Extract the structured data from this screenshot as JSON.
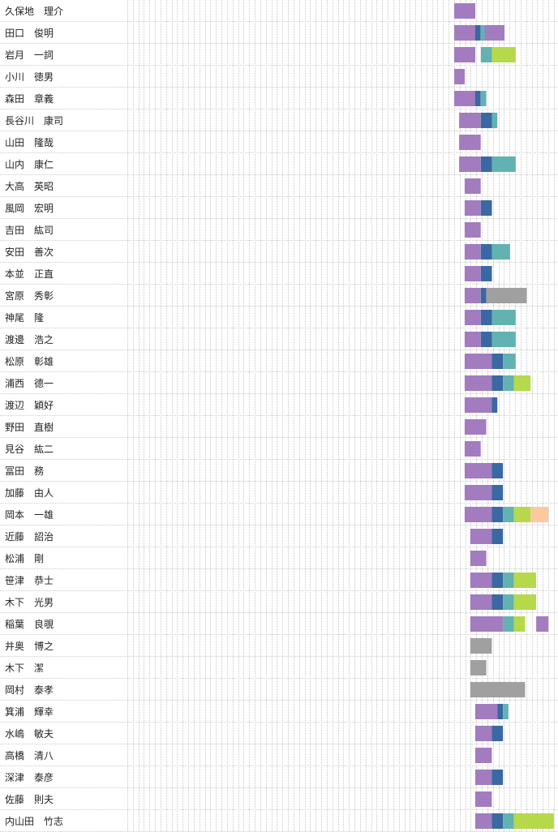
{
  "chart_data": {
    "type": "bar",
    "orientation": "horizontal-timeline",
    "grid": true,
    "column_count": 78,
    "colors": {
      "purple": "#a27cbf",
      "blue": "#3a68a2",
      "teal": "#62b2b1",
      "green": "#b5d94a",
      "peach": "#fbc99c",
      "gray": "#a0a0a0"
    },
    "rows": [
      {
        "name": "久保地　理介",
        "segments": [
          {
            "start": 59,
            "end": 62.8,
            "color": "purple"
          }
        ]
      },
      {
        "name": "田口　俊明",
        "segments": [
          {
            "start": 59,
            "end": 62.8,
            "color": "purple"
          },
          {
            "start": 62.8,
            "end": 63.8,
            "color": "blue"
          },
          {
            "start": 63.8,
            "end": 64.5,
            "color": "teal"
          },
          {
            "start": 64.5,
            "end": 68.1,
            "color": "purple"
          }
        ]
      },
      {
        "name": "岩月　一詞",
        "segments": [
          {
            "start": 59,
            "end": 62.8,
            "color": "purple"
          },
          {
            "start": 63.8,
            "end": 65.8,
            "color": "teal"
          },
          {
            "start": 65.8,
            "end": 70.1,
            "color": "green"
          }
        ]
      },
      {
        "name": "小川　徳男",
        "segments": [
          {
            "start": 59,
            "end": 60.9,
            "color": "purple"
          }
        ]
      },
      {
        "name": "森田　章義",
        "segments": [
          {
            "start": 59,
            "end": 62.8,
            "color": "purple"
          },
          {
            "start": 62.8,
            "end": 63.8,
            "color": "blue"
          },
          {
            "start": 63.8,
            "end": 64.8,
            "color": "teal"
          }
        ]
      },
      {
        "name": "長谷川　康司",
        "segments": [
          {
            "start": 59.9,
            "end": 63.8,
            "color": "purple"
          },
          {
            "start": 63.8,
            "end": 65.8,
            "color": "blue"
          },
          {
            "start": 65.8,
            "end": 66.8,
            "color": "teal"
          }
        ]
      },
      {
        "name": "山田　隆哉",
        "segments": [
          {
            "start": 59.9,
            "end": 63.8,
            "color": "purple"
          }
        ]
      },
      {
        "name": "山内　康仁",
        "segments": [
          {
            "start": 59.9,
            "end": 63.8,
            "color": "purple"
          },
          {
            "start": 63.8,
            "end": 65.8,
            "color": "blue"
          },
          {
            "start": 65.8,
            "end": 70.1,
            "color": "teal"
          }
        ]
      },
      {
        "name": "大高　英昭",
        "segments": [
          {
            "start": 60.9,
            "end": 63.8,
            "color": "purple"
          }
        ]
      },
      {
        "name": "風岡　宏明",
        "segments": [
          {
            "start": 60.9,
            "end": 63.8,
            "color": "purple"
          },
          {
            "start": 63.8,
            "end": 65.8,
            "color": "blue"
          }
        ]
      },
      {
        "name": "吉田　紘司",
        "segments": [
          {
            "start": 60.9,
            "end": 63.8,
            "color": "purple"
          }
        ]
      },
      {
        "name": "安田　善次",
        "segments": [
          {
            "start": 60.9,
            "end": 63.8,
            "color": "purple"
          },
          {
            "start": 63.8,
            "end": 65.8,
            "color": "blue"
          },
          {
            "start": 65.8,
            "end": 69.1,
            "color": "teal"
          }
        ]
      },
      {
        "name": "本並　正直",
        "segments": [
          {
            "start": 60.9,
            "end": 63.8,
            "color": "purple"
          },
          {
            "start": 63.8,
            "end": 65.8,
            "color": "blue"
          }
        ]
      },
      {
        "name": "宮原　秀彰",
        "segments": [
          {
            "start": 60.9,
            "end": 63.8,
            "color": "purple"
          },
          {
            "start": 63.8,
            "end": 64.8,
            "color": "blue"
          },
          {
            "start": 64.8,
            "end": 72.1,
            "color": "gray"
          }
        ]
      },
      {
        "name": "神尾　隆",
        "segments": [
          {
            "start": 60.9,
            "end": 63.8,
            "color": "purple"
          },
          {
            "start": 63.8,
            "end": 65.8,
            "color": "blue"
          },
          {
            "start": 65.8,
            "end": 70.1,
            "color": "teal"
          }
        ]
      },
      {
        "name": "渡邊　浩之",
        "segments": [
          {
            "start": 60.9,
            "end": 63.8,
            "color": "purple"
          },
          {
            "start": 63.8,
            "end": 65.8,
            "color": "blue"
          },
          {
            "start": 65.8,
            "end": 70.1,
            "color": "teal"
          }
        ]
      },
      {
        "name": "松原　彰雄",
        "segments": [
          {
            "start": 60.9,
            "end": 65.8,
            "color": "purple"
          },
          {
            "start": 65.8,
            "end": 67.8,
            "color": "blue"
          },
          {
            "start": 67.8,
            "end": 70.1,
            "color": "teal"
          }
        ]
      },
      {
        "name": "浦西　德一",
        "segments": [
          {
            "start": 60.9,
            "end": 65.8,
            "color": "purple"
          },
          {
            "start": 65.8,
            "end": 67.8,
            "color": "blue"
          },
          {
            "start": 67.8,
            "end": 69.8,
            "color": "teal"
          },
          {
            "start": 69.8,
            "end": 72.8,
            "color": "green"
          }
        ]
      },
      {
        "name": "渡辺　穎好",
        "segments": [
          {
            "start": 60.9,
            "end": 65.8,
            "color": "purple"
          },
          {
            "start": 65.8,
            "end": 66.8,
            "color": "blue"
          }
        ]
      },
      {
        "name": "野田　直樹",
        "segments": [
          {
            "start": 60.9,
            "end": 64.8,
            "color": "purple"
          }
        ]
      },
      {
        "name": "見谷　紘二",
        "segments": [
          {
            "start": 60.9,
            "end": 63.8,
            "color": "purple"
          }
        ]
      },
      {
        "name": "冨田　務",
        "segments": [
          {
            "start": 60.9,
            "end": 65.8,
            "color": "purple"
          },
          {
            "start": 65.8,
            "end": 67.8,
            "color": "blue"
          }
        ]
      },
      {
        "name": "加藤　由人",
        "segments": [
          {
            "start": 60.9,
            "end": 65.8,
            "color": "purple"
          },
          {
            "start": 65.8,
            "end": 67.8,
            "color": "blue"
          }
        ]
      },
      {
        "name": "岡本　一雄",
        "segments": [
          {
            "start": 60.9,
            "end": 65.8,
            "color": "purple"
          },
          {
            "start": 65.8,
            "end": 67.8,
            "color": "blue"
          },
          {
            "start": 67.8,
            "end": 69.8,
            "color": "teal"
          },
          {
            "start": 69.8,
            "end": 72.8,
            "color": "green"
          },
          {
            "start": 72.8,
            "end": 76,
            "color": "peach"
          }
        ]
      },
      {
        "name": "近藤　詔治",
        "segments": [
          {
            "start": 61.9,
            "end": 65.8,
            "color": "purple"
          },
          {
            "start": 65.8,
            "end": 67.8,
            "color": "blue"
          }
        ]
      },
      {
        "name": "松浦　剛",
        "segments": [
          {
            "start": 61.9,
            "end": 64.8,
            "color": "purple"
          }
        ]
      },
      {
        "name": "笹津　恭士",
        "segments": [
          {
            "start": 61.9,
            "end": 65.8,
            "color": "purple"
          },
          {
            "start": 65.8,
            "end": 67.8,
            "color": "blue"
          },
          {
            "start": 67.8,
            "end": 69.8,
            "color": "teal"
          },
          {
            "start": 69.8,
            "end": 73.8,
            "color": "green"
          }
        ]
      },
      {
        "name": "木下　光男",
        "segments": [
          {
            "start": 61.9,
            "end": 65.8,
            "color": "purple"
          },
          {
            "start": 65.8,
            "end": 67.8,
            "color": "blue"
          },
          {
            "start": 67.8,
            "end": 69.8,
            "color": "teal"
          },
          {
            "start": 69.8,
            "end": 73.8,
            "color": "green"
          }
        ]
      },
      {
        "name": "稲葉　良覗",
        "segments": [
          {
            "start": 61.9,
            "end": 67.8,
            "color": "purple"
          },
          {
            "start": 67.8,
            "end": 69.8,
            "color": "teal"
          },
          {
            "start": 69.8,
            "end": 71.8,
            "color": "green"
          },
          {
            "start": 73.8,
            "end": 76,
            "color": "purple"
          }
        ]
      },
      {
        "name": "井奥　博之",
        "segments": [
          {
            "start": 61.9,
            "end": 65.8,
            "color": "gray"
          }
        ]
      },
      {
        "name": "木下　潔",
        "segments": [
          {
            "start": 61.9,
            "end": 64.8,
            "color": "gray"
          }
        ]
      },
      {
        "name": "岡村　泰孝",
        "segments": [
          {
            "start": 61.9,
            "end": 71.8,
            "color": "gray"
          }
        ]
      },
      {
        "name": "箕浦　輝幸",
        "segments": [
          {
            "start": 62.8,
            "end": 66.8,
            "color": "purple"
          },
          {
            "start": 66.8,
            "end": 67.8,
            "color": "blue"
          },
          {
            "start": 67.8,
            "end": 68.8,
            "color": "teal"
          }
        ]
      },
      {
        "name": "水嶋　敏夫",
        "segments": [
          {
            "start": 62.8,
            "end": 65.8,
            "color": "purple"
          },
          {
            "start": 65.8,
            "end": 67.8,
            "color": "blue"
          }
        ]
      },
      {
        "name": "高橋　清八",
        "segments": [
          {
            "start": 62.8,
            "end": 65.8,
            "color": "purple"
          }
        ]
      },
      {
        "name": "深津　泰彦",
        "segments": [
          {
            "start": 62.8,
            "end": 65.8,
            "color": "purple"
          },
          {
            "start": 65.8,
            "end": 67.8,
            "color": "blue"
          }
        ]
      },
      {
        "name": "佐藤　則夫",
        "segments": [
          {
            "start": 62.8,
            "end": 65.8,
            "color": "purple"
          }
        ]
      },
      {
        "name": "内山田　竹志",
        "segments": [
          {
            "start": 62.8,
            "end": 65.8,
            "color": "purple"
          },
          {
            "start": 65.8,
            "end": 67.8,
            "color": "blue"
          },
          {
            "start": 67.8,
            "end": 69.8,
            "color": "teal"
          },
          {
            "start": 69.8,
            "end": 77,
            "color": "green"
          }
        ]
      }
    ]
  }
}
